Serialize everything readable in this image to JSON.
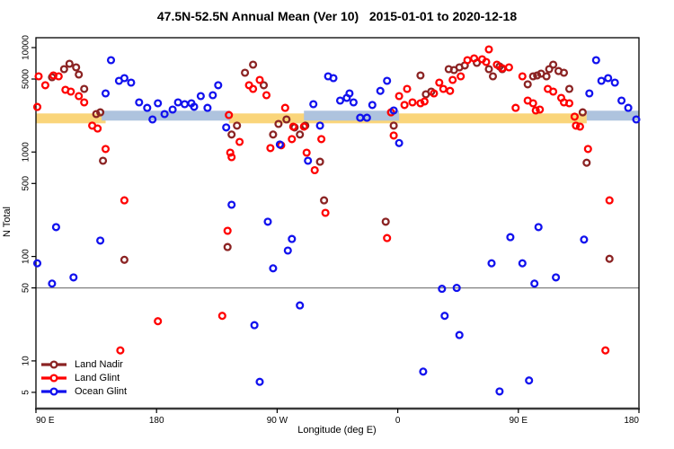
{
  "title": "47.5N-52.5N Annual Mean (Ver 10)   2015-01-01 to 2020-12-18",
  "y_axis": {
    "label": "N Total",
    "tick_values": [
      10000,
      5000,
      1000,
      500,
      100,
      50,
      10,
      5
    ],
    "tick_labels": [
      "10000",
      "5000",
      "1000",
      "500",
      "100",
      "50",
      "10",
      "5"
    ]
  },
  "x_axis": {
    "label": "Longitude (deg E)",
    "tick_positions_deg": [
      0,
      90,
      180,
      270,
      360,
      450
    ],
    "tick_labels": [
      "90 E",
      "180",
      "90 W",
      "0",
      "90 E",
      "180"
    ]
  },
  "legend": {
    "items": [
      {
        "label": "Land Nadir",
        "color": "#8B2323"
      },
      {
        "label": "Land Glint",
        "color": "#FF0000"
      },
      {
        "label": "Ocean Glint",
        "color": "#1111EE"
      }
    ]
  },
  "colors": {
    "land_nadir": "#8B2323",
    "land_glint": "#FF0000",
    "ocean_glint": "#1111EE",
    "land_band": "#FAD57A",
    "ocean_band": "#AEC3DE",
    "ref_line": "#808080",
    "axis": "#000000"
  },
  "chart_data": {
    "type": "scatter",
    "title": "47.5N-52.5N Annual Mean (Ver 10)   2015-01-01 to 2020-12-18",
    "xlabel": "Longitude (deg E)",
    "ylabel": "N Total",
    "y_scale": "log10",
    "ylim": [
      4.3,
      12500
    ],
    "x_axis_span_deg": 450,
    "x_note": "x = degrees east of left edge (axis wraps 90E → 180 → 90W → 0 → 90E → 180)",
    "ref_line_n": 50,
    "bands": [
      {
        "name": "land-mean-band",
        "color": "#FAD57A",
        "n": 2100,
        "segments_deg": [
          [
            0,
            52
          ],
          [
            144,
            411
          ]
        ]
      },
      {
        "name": "ocean-mean-band",
        "color": "#AEC3DE",
        "n": 2230,
        "segments_deg": [
          [
            49,
            145
          ],
          [
            200,
            271
          ],
          [
            411,
            450
          ]
        ]
      }
    ],
    "series": [
      {
        "name": "Land Nadir",
        "color": "#8B2323",
        "points": [
          [
            12,
            5200
          ],
          [
            21,
            6220
          ],
          [
            25,
            7000
          ],
          [
            30,
            6470
          ],
          [
            32,
            5520
          ],
          [
            36,
            4020
          ],
          [
            45,
            2310
          ],
          [
            48,
            2400
          ],
          [
            50,
            826
          ],
          [
            66,
            93
          ],
          [
            143,
            123
          ],
          [
            146,
            1470
          ],
          [
            150,
            1790
          ],
          [
            156,
            5740
          ],
          [
            162,
            6870
          ],
          [
            170,
            4360
          ],
          [
            177,
            1470
          ],
          [
            181,
            1860
          ],
          [
            187,
            2050
          ],
          [
            193,
            1720
          ],
          [
            197,
            1470
          ],
          [
            201,
            1790
          ],
          [
            212,
            807
          ],
          [
            215,
            345
          ],
          [
            261,
            215
          ],
          [
            267,
            1790
          ],
          [
            287,
            5410
          ],
          [
            291,
            3570
          ],
          [
            295,
            3790
          ],
          [
            308,
            6220
          ],
          [
            312,
            6100
          ],
          [
            316,
            6470
          ],
          [
            320,
            6740
          ],
          [
            329,
            7140
          ],
          [
            338,
            6220
          ],
          [
            341,
            5310
          ],
          [
            346,
            6600
          ],
          [
            348,
            6220
          ],
          [
            367,
            4450
          ],
          [
            371,
            5310
          ],
          [
            374,
            5410
          ],
          [
            377,
            5630
          ],
          [
            381,
            5310
          ],
          [
            383,
            6220
          ],
          [
            386,
            6870
          ],
          [
            390,
            5970
          ],
          [
            394,
            5740
          ],
          [
            398,
            4020
          ],
          [
            408,
            2400
          ],
          [
            411,
            790
          ],
          [
            428,
            95
          ]
        ]
      },
      {
        "name": "Land Glint",
        "color": "#FF0000",
        "points": [
          [
            1,
            2700
          ],
          [
            2,
            5310
          ],
          [
            7,
            4360
          ],
          [
            13,
            5410
          ],
          [
            17,
            5310
          ],
          [
            22,
            3940
          ],
          [
            26,
            3790
          ],
          [
            32,
            3430
          ],
          [
            36,
            2990
          ],
          [
            42,
            1790
          ],
          [
            46,
            1680
          ],
          [
            52,
            1070
          ],
          [
            63,
            12.6
          ],
          [
            66,
            345
          ],
          [
            91,
            24
          ],
          [
            139,
            27
          ],
          [
            143,
            176
          ],
          [
            144,
            2260
          ],
          [
            145,
            986
          ],
          [
            146,
            893
          ],
          [
            152,
            1250
          ],
          [
            159,
            4360
          ],
          [
            162,
            4020
          ],
          [
            167,
            4900
          ],
          [
            172,
            3500
          ],
          [
            175,
            1090
          ],
          [
            183,
            1160
          ],
          [
            186,
            2650
          ],
          [
            191,
            1330
          ],
          [
            192,
            1750
          ],
          [
            200,
            1750
          ],
          [
            202,
            986
          ],
          [
            208,
            670
          ],
          [
            213,
            1330
          ],
          [
            216,
            262
          ],
          [
            262,
            150
          ],
          [
            265,
            2400
          ],
          [
            267,
            1440
          ],
          [
            271,
            3430
          ],
          [
            275,
            2820
          ],
          [
            277,
            4020
          ],
          [
            281,
            2990
          ],
          [
            287,
            2930
          ],
          [
            290,
            3050
          ],
          [
            297,
            3640
          ],
          [
            301,
            4620
          ],
          [
            304,
            4020
          ],
          [
            309,
            3850
          ],
          [
            311,
            4900
          ],
          [
            317,
            5310
          ],
          [
            322,
            7580
          ],
          [
            327,
            7890
          ],
          [
            333,
            7730
          ],
          [
            336,
            7280
          ],
          [
            338,
            9610
          ],
          [
            344,
            6870
          ],
          [
            348,
            6340
          ],
          [
            353,
            6470
          ],
          [
            358,
            2650
          ],
          [
            363,
            5310
          ],
          [
            367,
            3110
          ],
          [
            371,
            2930
          ],
          [
            373,
            2500
          ],
          [
            376,
            2550
          ],
          [
            382,
            4020
          ],
          [
            386,
            3790
          ],
          [
            392,
            3300
          ],
          [
            394,
            2990
          ],
          [
            398,
            2930
          ],
          [
            402,
            2180
          ],
          [
            403,
            1790
          ],
          [
            406,
            1750
          ],
          [
            412,
            1070
          ],
          [
            425,
            12.6
          ],
          [
            428,
            345
          ]
        ]
      },
      {
        "name": "Ocean Glint",
        "color": "#1111EE",
        "points": [
          [
            1,
            86
          ],
          [
            12,
            55
          ],
          [
            15,
            191
          ],
          [
            28,
            63
          ],
          [
            48,
            142
          ],
          [
            52,
            3640
          ],
          [
            56,
            7580
          ],
          [
            62,
            4810
          ],
          [
            66,
            5100
          ],
          [
            71,
            4620
          ],
          [
            77,
            2990
          ],
          [
            83,
            2650
          ],
          [
            87,
            2050
          ],
          [
            91,
            2930
          ],
          [
            96,
            2310
          ],
          [
            102,
            2550
          ],
          [
            106,
            2990
          ],
          [
            111,
            2870
          ],
          [
            116,
            2930
          ],
          [
            118,
            2710
          ],
          [
            123,
            3430
          ],
          [
            128,
            2650
          ],
          [
            132,
            3500
          ],
          [
            136,
            4360
          ],
          [
            142,
            1720
          ],
          [
            146,
            313
          ],
          [
            163,
            22
          ],
          [
            167,
            6.3
          ],
          [
            173,
            215
          ],
          [
            177,
            77
          ],
          [
            182,
            1180
          ],
          [
            188,
            114
          ],
          [
            191,
            147
          ],
          [
            197,
            34
          ],
          [
            203,
            826
          ],
          [
            207,
            2870
          ],
          [
            212,
            1790
          ],
          [
            218,
            5310
          ],
          [
            222,
            5100
          ],
          [
            227,
            3110
          ],
          [
            232,
            3300
          ],
          [
            234,
            3640
          ],
          [
            237,
            2990
          ],
          [
            242,
            2130
          ],
          [
            247,
            2130
          ],
          [
            251,
            2820
          ],
          [
            257,
            3850
          ],
          [
            262,
            4810
          ],
          [
            267,
            2500
          ],
          [
            271,
            1220
          ],
          [
            289,
            7.9
          ],
          [
            303,
            49
          ],
          [
            305,
            27
          ],
          [
            314,
            50
          ],
          [
            316,
            17.7
          ],
          [
            340,
            86
          ],
          [
            346,
            5.1
          ],
          [
            354,
            153
          ],
          [
            363,
            86
          ],
          [
            368,
            6.5
          ],
          [
            372,
            55
          ],
          [
            375,
            191
          ],
          [
            388,
            63
          ],
          [
            409,
            145
          ],
          [
            413,
            3640
          ],
          [
            418,
            7580
          ],
          [
            422,
            4810
          ],
          [
            427,
            5100
          ],
          [
            432,
            4620
          ],
          [
            437,
            3110
          ],
          [
            442,
            2650
          ],
          [
            448,
            2050
          ]
        ]
      }
    ]
  }
}
